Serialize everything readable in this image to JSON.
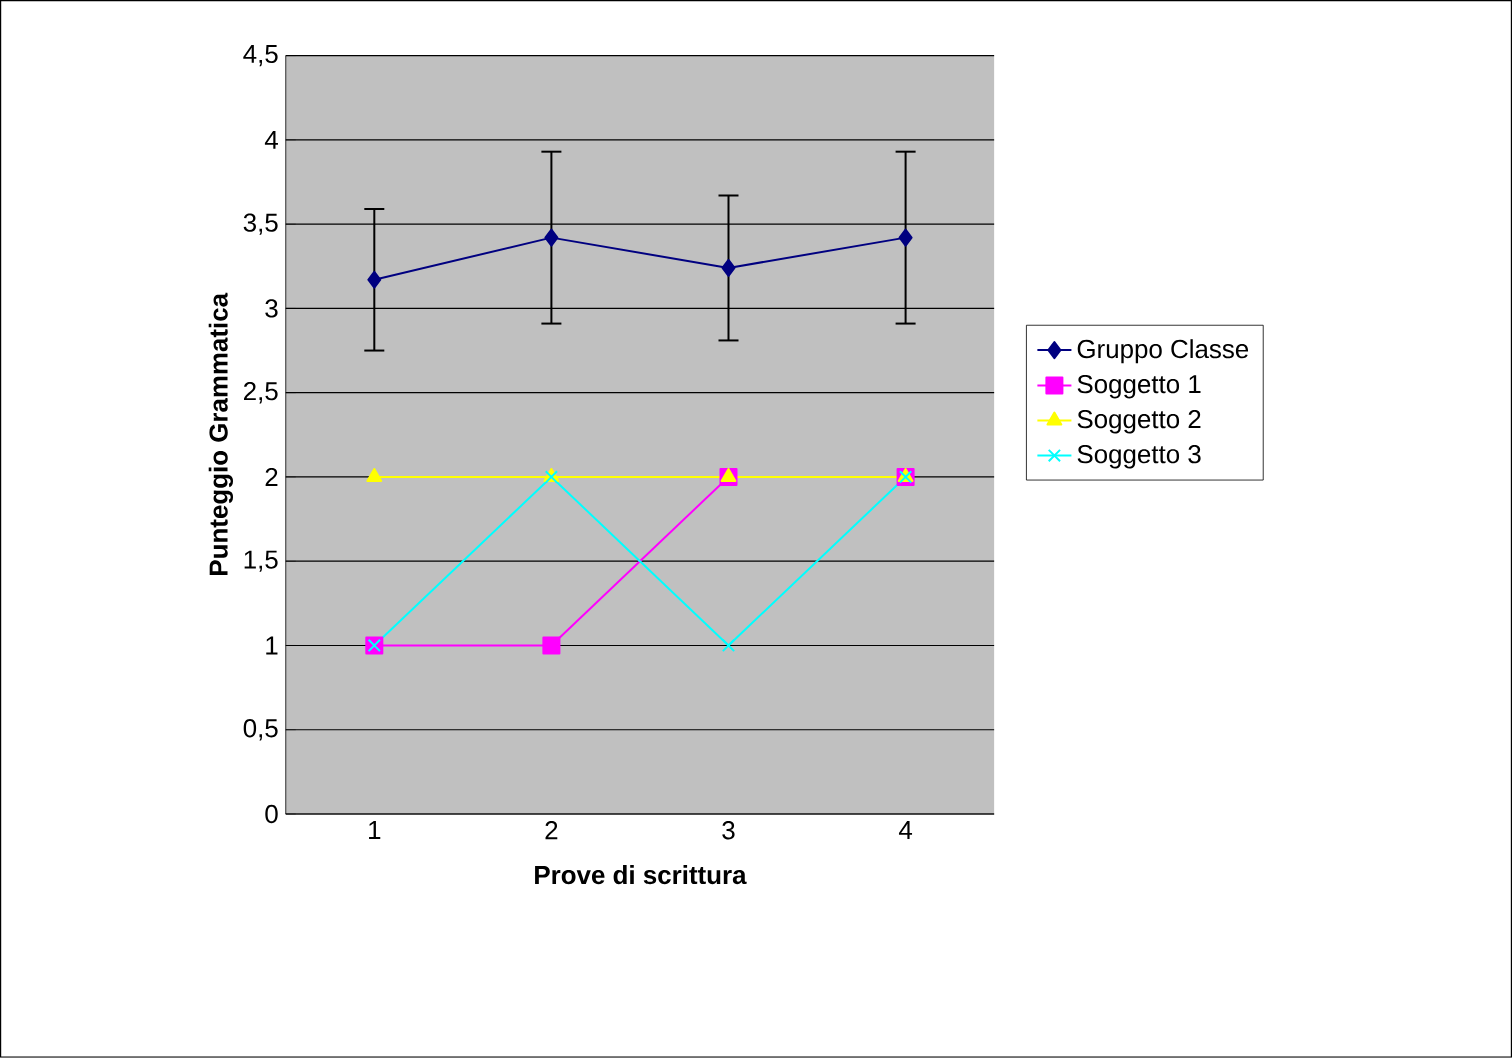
{
  "chart_data": {
    "type": "line",
    "xlabel": "Prove di scrittura",
    "ylabel": "Punteggio Grammatica",
    "categories": [
      "1",
      "2",
      "3",
      "4"
    ],
    "series": [
      {
        "name": "Gruppo Classe",
        "color": "#000080",
        "marker": "diamond",
        "values": [
          3.17,
          3.42,
          3.24,
          3.42
        ],
        "errors": [
          0.42,
          0.51,
          0.43,
          0.51
        ]
      },
      {
        "name": "Soggetto 1",
        "color": "#ff00ff",
        "marker": "square",
        "values": [
          1,
          1,
          2,
          2
        ]
      },
      {
        "name": "Soggetto 2",
        "color": "#ffff00",
        "marker": "triangle",
        "values": [
          2,
          2,
          2,
          2
        ]
      },
      {
        "name": "Soggetto 3",
        "color": "#00ffff",
        "marker": "cross",
        "values": [
          1,
          2,
          1,
          2
        ]
      }
    ],
    "ylim": [
      0,
      4.5
    ],
    "yticks": [
      0,
      {
        "value": 0.5,
        "label": "0,5"
      },
      1,
      {
        "value": 1.5,
        "label": "1,5"
      },
      2,
      {
        "value": 2.5,
        "label": "2,5"
      },
      3,
      {
        "value": 3.5,
        "label": "3,5"
      },
      4,
      {
        "value": 4.5,
        "label": "4,5"
      }
    ],
    "grid": "y",
    "legend": "right"
  }
}
